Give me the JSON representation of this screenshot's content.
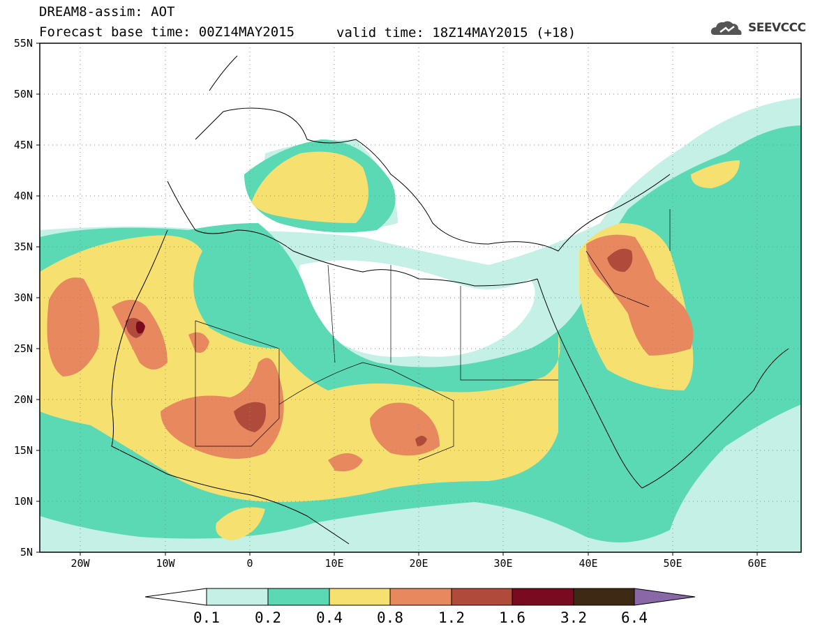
{
  "header": {
    "title_line1": "DREAM8-assim: AOT",
    "title_line2": "Forecast base time: 00Z14MAY2015",
    "valid_time": "valid time: 18Z14MAY2015 (+18)",
    "logo_text": "SEEVCCC",
    "logo_color": "#555555"
  },
  "map": {
    "lon_range": [
      -25,
      65
    ],
    "lat_range": [
      5,
      55
    ],
    "lat_labels": [
      "55N",
      "50N",
      "45N",
      "40N",
      "35N",
      "30N",
      "25N",
      "20N",
      "15N",
      "10N",
      "5N"
    ],
    "lon_labels": [
      "20W",
      "10W",
      "0",
      "10E",
      "20E",
      "30E",
      "40E",
      "50E",
      "60E"
    ],
    "grid": "dotted",
    "field": "AOT"
  },
  "colorbar": {
    "labels": [
      "0.1",
      "0.2",
      "0.4",
      "0.8",
      "1.2",
      "1.6",
      "3.2",
      "6.4"
    ],
    "colors": [
      "#ffffff",
      "#c4f0e6",
      "#5ad9b4",
      "#f5e070",
      "#e8885e",
      "#b04a3a",
      "#7a0a20",
      "#3e2a14",
      "#8a68a8"
    ]
  }
}
